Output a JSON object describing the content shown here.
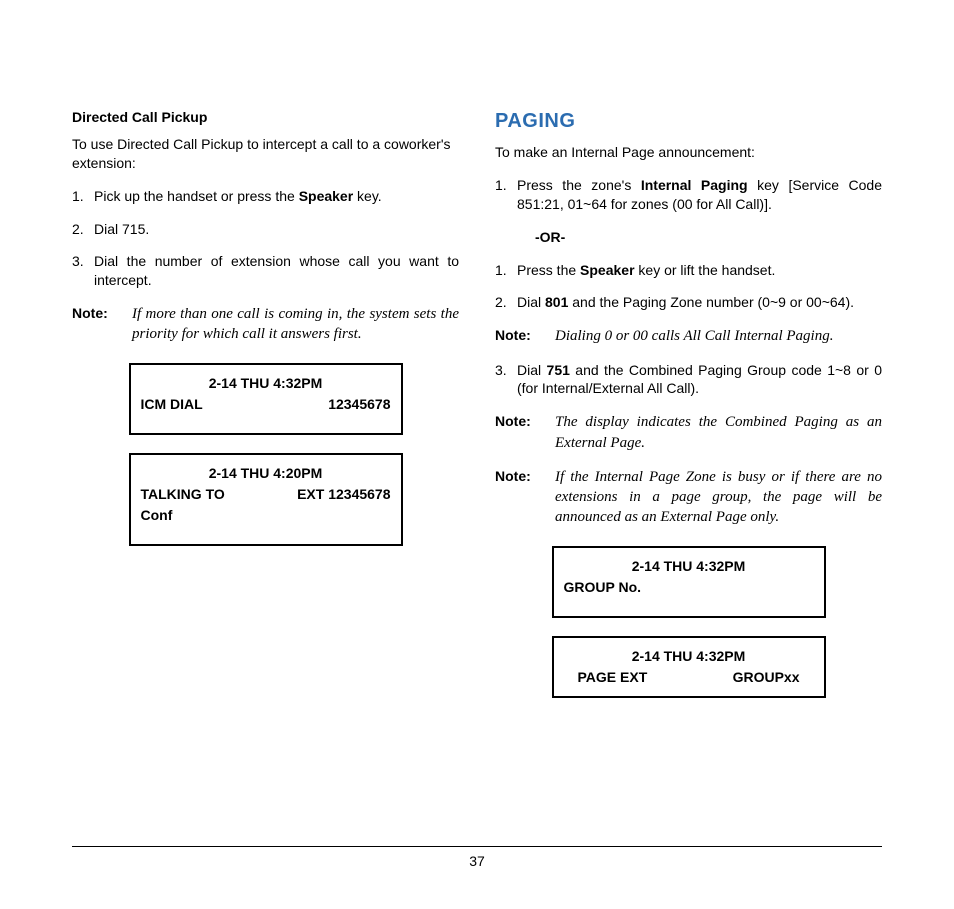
{
  "left": {
    "subheading": "Directed Call Pickup",
    "intro": "To use Directed Call Pickup to intercept a call  to a coworker's extension:",
    "step1_prefix": "Pick up the handset or press the ",
    "step1_bold": "Speaker",
    "step1_suffix": " key.",
    "step2": "Dial 715.",
    "step3": "Dial the number of extension whose call you want to intercept.",
    "note_label": "Note:",
    "note_text": "If more than one call is coming in, the system sets the priority for which call it answers first.",
    "display1_dt": "2-14   THU   4:32PM",
    "display1_l2a": "ICM DIAL",
    "display1_l2b": "12345678",
    "display2_dt": "2-14   THU   4:20PM",
    "display2_l2a": "TALKING TO",
    "display2_l2b": "EXT 12345678",
    "display2_l3": "Conf"
  },
  "right": {
    "heading": "PAGING",
    "intro": "To make an Internal Page announcement:",
    "step1_prefix": "Press the zone's ",
    "step1_bold": "Internal Paging",
    "step1_suffix": " key [Service Code 851:21, 01~64 for zones (00 for All Call)].",
    "or": "-OR-",
    "step1b_prefix": "Press the ",
    "step1b_bold": "Speaker",
    "step1b_suffix": " key or lift the handset.",
    "step2_prefix": "Dial ",
    "step2_bold": "801",
    "step2_suffix": " and the Paging Zone number (0~9 or 00~64).",
    "note1_label": "Note:",
    "note1_text": "Dialing 0 or 00 calls All Call Internal Paging.",
    "step3_prefix": "Dial ",
    "step3_bold": "751",
    "step3_suffix": " and the Combined Paging Group code 1~8 or 0 (for Internal/External All Call).",
    "note2_label": "Note:",
    "note2_text": "The display indicates the Combined Paging as an External Page.",
    "note3_label": "Note:",
    "note3_text": "If the Internal Page Zone is busy or if there are no extensions in a page group, the page will be announced as an External Page only.",
    "display1_dt": "2-14   THU   4:32PM",
    "display1_l2": "GROUP No.",
    "display2_dt": "2-14   THU   4:32PM",
    "display2_l2a": "PAGE EXT",
    "display2_l2b": "GROUPxx"
  },
  "footer": {
    "page_number": "37"
  }
}
